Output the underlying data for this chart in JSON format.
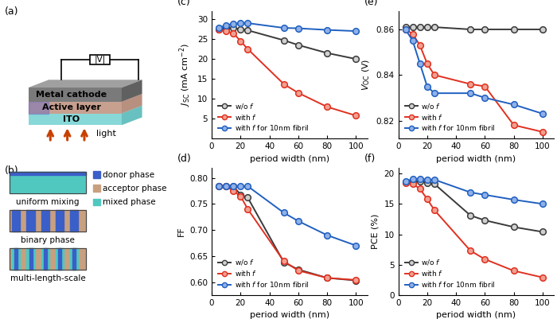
{
  "x": [
    5,
    10,
    15,
    20,
    25,
    50,
    60,
    80,
    100
  ],
  "jsc": {
    "wo_f": [
      27.5,
      27.8,
      27.8,
      27.5,
      27.2,
      24.7,
      23.5,
      21.5,
      20.0
    ],
    "with_f": [
      27.5,
      27.0,
      26.5,
      24.5,
      22.5,
      13.7,
      11.5,
      8.0,
      5.8
    ],
    "fibril": [
      27.8,
      28.5,
      28.8,
      29.0,
      29.0,
      27.8,
      27.7,
      27.3,
      27.0
    ]
  },
  "voc": {
    "wo_f": [
      0.861,
      0.861,
      0.861,
      0.861,
      0.861,
      0.86,
      0.86,
      0.86,
      0.86
    ],
    "with_f": [
      0.86,
      0.858,
      0.853,
      0.845,
      0.84,
      0.836,
      0.835,
      0.818,
      0.815
    ],
    "fibril": [
      0.86,
      0.855,
      0.845,
      0.835,
      0.832,
      0.832,
      0.83,
      0.827,
      0.823
    ]
  },
  "ff": {
    "wo_f": [
      0.784,
      0.784,
      0.784,
      0.768,
      0.762,
      0.638,
      0.624,
      0.608,
      0.603
    ],
    "with_f": [
      0.784,
      0.784,
      0.775,
      0.765,
      0.74,
      0.64,
      0.622,
      0.608,
      0.604
    ],
    "fibril": [
      0.784,
      0.784,
      0.784,
      0.784,
      0.784,
      0.733,
      0.717,
      0.69,
      0.67
    ]
  },
  "pce": {
    "wo_f": [
      18.6,
      18.7,
      18.7,
      18.5,
      18.3,
      13.1,
      12.3,
      11.2,
      10.4
    ],
    "with_f": [
      18.5,
      18.3,
      17.5,
      15.8,
      14.0,
      7.3,
      5.9,
      4.0,
      2.9
    ],
    "fibril": [
      18.7,
      19.1,
      19.1,
      19.0,
      19.0,
      16.9,
      16.5,
      15.7,
      15.0
    ]
  },
  "colors": {
    "wo_f": "#3a3a3a",
    "with_f": "#e03020",
    "fibril": "#2060c0"
  },
  "xlim": [
    0,
    108
  ],
  "xticks": [
    0,
    20,
    40,
    60,
    80,
    100
  ],
  "xlabel": "period width (nm)",
  "ylabels": {
    "jsc": "$J_{\\mathrm{SC}}$ (mA cm$^{-2}$)",
    "ff": "FF",
    "voc": "$V_{\\mathrm{OC}}$ (V)",
    "pce": "PCE (%)"
  },
  "ylims": {
    "jsc": [
      0,
      32
    ],
    "ff": [
      0.575,
      0.82
    ],
    "voc": [
      0.812,
      0.868
    ],
    "pce": [
      0,
      21
    ]
  },
  "yticks": {
    "jsc": [
      5,
      10,
      15,
      20,
      25,
      30
    ],
    "ff": [
      0.6,
      0.65,
      0.7,
      0.75,
      0.8
    ],
    "voc": [
      0.82,
      0.84,
      0.86
    ],
    "pce": [
      0,
      5,
      10,
      15,
      20
    ]
  },
  "donor_color": "#3a5fc8",
  "acceptor_color": "#c8a080",
  "mixed_color": "#50c8c0",
  "metal_front": "#7a7a7a",
  "metal_top": "#a0a0a0",
  "metal_side": "#606060",
  "active_front": "#c8a090",
  "active_top": "#d0c0c8",
  "active_side": "#b89080",
  "ito_front": "#88d8d8",
  "ito_top": "#b0eeee",
  "ito_side": "#68c0c0"
}
